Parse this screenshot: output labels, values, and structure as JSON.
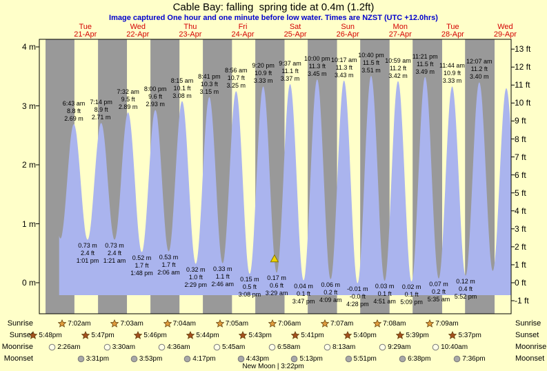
{
  "header": {
    "title": "Cable Bay: falling  spring tide at 0.4m (1.2ft)",
    "subtitle": "Image captured One hour and one minute before low water. Times are NZST (UTC +12.0hrs)"
  },
  "colors": {
    "page_bg": "#ffffc9",
    "day_band": "#ffffc9",
    "night_band": "#999999",
    "tide_fill": "#aab4ee",
    "day_label_red": "#d40000",
    "subtitle_blue": "#0000cd",
    "marker_fill": "#f0d400",
    "marker_stroke": "#857500",
    "sunrise_star": "#dd9a3c",
    "sunset_star": "#a3511f",
    "moonrise_fill": "#ffffe8",
    "moonset_fill": "#a8a8a8"
  },
  "chart_data": {
    "type": "area",
    "title": "Cable Bay: falling  spring tide at 0.4m (1.2ft)",
    "x_days": [
      {
        "dow": "Tue",
        "date": "21-Apr"
      },
      {
        "dow": "Wed",
        "date": "22-Apr"
      },
      {
        "dow": "Thu",
        "date": "23-Apr"
      },
      {
        "dow": "Fri",
        "date": "24-Apr"
      },
      {
        "dow": "Sat",
        "date": "25-Apr"
      },
      {
        "dow": "Sun",
        "date": "26-Apr"
      },
      {
        "dow": "Mon",
        "date": "27-Apr"
      },
      {
        "dow": "Tue",
        "date": "28-Apr"
      },
      {
        "dow": "Wed",
        "date": "29-Apr"
      }
    ],
    "y_left": [
      {
        "v": 4,
        "label": "4 m"
      },
      {
        "v": 3,
        "label": "3 m"
      },
      {
        "v": 2,
        "label": "2 m"
      },
      {
        "v": 1,
        "label": "1 m"
      },
      {
        "v": 0,
        "label": "0 m"
      }
    ],
    "y_right": [
      {
        "v": 13,
        "label": "13 ft"
      },
      {
        "v": 12,
        "label": "12 ft"
      },
      {
        "v": 11,
        "label": "11 ft"
      },
      {
        "v": 10,
        "label": "10 ft"
      },
      {
        "v": 9,
        "label": "9 ft"
      },
      {
        "v": 8,
        "label": "8 ft"
      },
      {
        "v": 7,
        "label": "7 ft"
      },
      {
        "v": 6,
        "label": "6 ft"
      },
      {
        "v": 5,
        "label": "5 ft"
      },
      {
        "v": 4,
        "label": "4 ft"
      },
      {
        "v": 3,
        "label": "3 ft"
      },
      {
        "v": 2,
        "label": "2 ft"
      },
      {
        "v": 1,
        "label": "1 ft"
      },
      {
        "v": 0,
        "label": "0 ft"
      },
      {
        "v": -1,
        "label": "-1 ft"
      }
    ],
    "ylim_m": [
      -0.53,
      4.13
    ],
    "highs": [
      {
        "time": "6:43 am",
        "ft": "8.8 ft",
        "m": "2.69 m",
        "t": 6.72,
        "h": 2.69
      },
      {
        "time": "7:14 pm",
        "ft": "8.9 ft",
        "m": "2.71 m",
        "t": 19.23,
        "h": 2.71
      },
      {
        "time": "7:32 am",
        "ft": "9.5 ft",
        "m": "2.89 m",
        "t": 31.53,
        "h": 2.89
      },
      {
        "time": "8:00 pm",
        "ft": "9.6 ft",
        "m": "2.93 m",
        "t": 44.0,
        "h": 2.93
      },
      {
        "time": "8:15 am",
        "ft": "10.1 ft",
        "m": "3.08 m",
        "t": 56.25,
        "h": 3.08
      },
      {
        "time": "8:41 pm",
        "ft": "10.3 ft",
        "m": "3.15 m",
        "t": 68.68,
        "h": 3.15
      },
      {
        "time": "8:56 am",
        "ft": "10.7 ft",
        "m": "3.25 m",
        "t": 80.93,
        "h": 3.25
      },
      {
        "time": "9:20 pm",
        "ft": "10.9 ft",
        "m": "3.33 m",
        "t": 93.33,
        "h": 3.33
      },
      {
        "time": "9:37 am",
        "ft": "11.1 ft",
        "m": "3.37 m",
        "t": 105.62,
        "h": 3.37
      },
      {
        "time": "10:00 pm",
        "ft": "11.3 ft",
        "m": "3.45 m",
        "t": 118.0,
        "h": 3.45
      },
      {
        "time": "10:17 am",
        "ft": "11.3 ft",
        "m": "3.43 m",
        "t": 130.28,
        "h": 3.43
      },
      {
        "time": "10:40 pm",
        "ft": "11.5 ft",
        "m": "3.51 m",
        "t": 142.67,
        "h": 3.51
      },
      {
        "time": "10:59 am",
        "ft": "11.2 ft",
        "m": "3.42 m",
        "t": 154.98,
        "h": 3.42
      },
      {
        "time": "11:21 pm",
        "ft": "11.5 ft",
        "m": "3.49 m",
        "t": 167.35,
        "h": 3.49
      },
      {
        "time": "11:44 am",
        "ft": "10.9 ft",
        "m": "3.33 m",
        "t": 179.73,
        "h": 3.33
      },
      {
        "time": "12:07 am",
        "ft": "11.2 ft",
        "m": "3.40 m",
        "t": 192.12,
        "h": 3.4
      }
    ],
    "lows": [
      {
        "m": "0.73 m",
        "ft": "2.4 ft",
        "time": "1:01 pm",
        "t": 13.02,
        "h": 0.73
      },
      {
        "m": "0.73 m",
        "ft": "2.4 ft",
        "time": "1:21 am",
        "t": 25.35,
        "h": 0.73
      },
      {
        "m": "0.52 m",
        "ft": "1.7 ft",
        "time": "1:48 pm",
        "t": 37.8,
        "h": 0.52
      },
      {
        "m": "0.53 m",
        "ft": "1.7 ft",
        "time": "2:06 am",
        "t": 50.1,
        "h": 0.53
      },
      {
        "m": "0.32 m",
        "ft": "1.0 ft",
        "time": "2:29 pm",
        "t": 62.48,
        "h": 0.32
      },
      {
        "m": "0.33 m",
        "ft": "1.1 ft",
        "time": "2:46 am",
        "t": 74.77,
        "h": 0.33
      },
      {
        "m": "0.15 m",
        "ft": "0.5 ft",
        "time": "3:08 pm",
        "t": 87.13,
        "h": 0.15
      },
      {
        "m": "0.17 m",
        "ft": "0.6 ft",
        "time": "3:29 am",
        "t": 99.48,
        "h": 0.17
      },
      {
        "m": "0.04 m",
        "ft": "0.1 ft",
        "time": "3:47 pm",
        "t": 111.78,
        "h": 0.04
      },
      {
        "m": "0.06 m",
        "ft": "0.2 ft",
        "time": "4:09 am",
        "t": 124.15,
        "h": 0.06
      },
      {
        "m": "-0.01 m",
        "ft": "-0.0 ft",
        "time": "4:28 pm",
        "t": 136.47,
        "h": -0.01
      },
      {
        "m": "0.03 m",
        "ft": "0.1 ft",
        "time": "4:51 am",
        "t": 148.85,
        "h": 0.03
      },
      {
        "m": "0.02 m",
        "ft": "0.1 ft",
        "time": "5:09 pm",
        "t": 161.15,
        "h": 0.02
      },
      {
        "m": "0.07 m",
        "ft": "0.2 ft",
        "time": "5:35 am",
        "t": 173.58,
        "h": 0.07
      },
      {
        "m": "0.12 m",
        "ft": "0.4 ft",
        "time": "5:52 pm",
        "t": 185.87,
        "h": 0.12
      }
    ],
    "marker": {
      "t": 98.47,
      "h": 0.4
    },
    "boundary_extremes": [
      [
        -5.5,
        2.67
      ],
      [
        0.6,
        0.75
      ],
      [
        198.3,
        0.2
      ],
      [
        204.5,
        3.3
      ],
      [
        210.7,
        0.3
      ]
    ],
    "final_sunrise_t": 199.15
  },
  "astro": {
    "sunrise": {
      "label": "Sunrise",
      "icon": "sunrise-star-icon",
      "events": [
        {
          "time": "7:02am",
          "t": 7.03
        },
        {
          "time": "7:03am",
          "t": 31.05
        },
        {
          "time": "7:04am",
          "t": 55.07
        },
        {
          "time": "7:05am",
          "t": 79.08
        },
        {
          "time": "7:06am",
          "t": 103.1
        },
        {
          "time": "7:07am",
          "t": 127.12
        },
        {
          "time": "7:08am",
          "t": 151.13
        },
        {
          "time": "7:09am",
          "t": 175.15
        }
      ]
    },
    "sunset": {
      "label": "Sunset",
      "icon": "sunset-star-icon",
      "events": [
        {
          "time": "5:48pm",
          "t": -6.2
        },
        {
          "time": "5:47pm",
          "t": 17.78
        },
        {
          "time": "5:46pm",
          "t": 41.77
        },
        {
          "time": "5:44pm",
          "t": 65.73
        },
        {
          "time": "5:43pm",
          "t": 89.72
        },
        {
          "time": "5:41pm",
          "t": 113.68
        },
        {
          "time": "5:40pm",
          "t": 137.67
        },
        {
          "time": "5:39pm",
          "t": 161.65
        },
        {
          "time": "5:37pm",
          "t": 185.62
        }
      ]
    },
    "moonrise": {
      "label": "Moonrise",
      "icon": "moonrise-circle-icon",
      "events": [
        {
          "time": "2:26am",
          "t": 2.43
        },
        {
          "time": "3:30am",
          "t": 27.5
        },
        {
          "time": "4:36am",
          "t": 52.6
        },
        {
          "time": "5:45am",
          "t": 77.75
        },
        {
          "time": "6:58am",
          "t": 102.97
        },
        {
          "time": "8:13am",
          "t": 128.22
        },
        {
          "time": "9:29am",
          "t": 153.48
        },
        {
          "time": "10:40am",
          "t": 178.67
        }
      ]
    },
    "moonset": {
      "label": "Moonset",
      "icon": "moonset-circle-icon",
      "events": [
        {
          "time": "3:31pm",
          "t": 15.52
        },
        {
          "time": "3:53pm",
          "t": 39.88
        },
        {
          "time": "4:17pm",
          "t": 64.28
        },
        {
          "time": "4:43pm",
          "t": 88.72
        },
        {
          "time": "5:13pm",
          "t": 113.22
        },
        {
          "time": "5:51pm",
          "t": 137.85
        },
        {
          "time": "6:38pm",
          "t": 162.63
        },
        {
          "time": "7:36pm",
          "t": 187.6
        }
      ]
    },
    "new_moon_label": "New Moon | 3:22pm"
  }
}
